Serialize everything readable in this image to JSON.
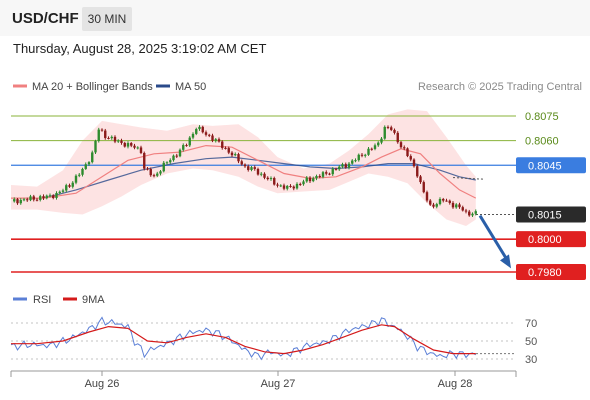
{
  "header": {
    "pair": "USD/CHF",
    "timeframe": "30 MIN",
    "datetime": "Thursday, August 28, 2025 3:19:02 AM CET"
  },
  "legend": {
    "ma20": "MA 20 + Bollinger Bands",
    "ma50": "MA 50",
    "credit": "Research © 2025 Trading Central",
    "rsi": "RSI",
    "rsi_ma": "9MA"
  },
  "colors": {
    "ma20": "#f08080",
    "ma50": "#2a4a8a",
    "band": "#fcd9d9",
    "up": "#2e8b2e",
    "down": "#8b1a1a",
    "resistance": "#8ab33a",
    "pivot": "#3a7de0",
    "support": "#e02020",
    "current": "#2a2a2a",
    "arrow": "#2a5fa8",
    "rsi": "#5b7fd6",
    "rsi_ma": "#d41a1a"
  },
  "chart_data": [
    {
      "type": "candlestick",
      "y_min": 0.7975,
      "y_max": 0.8083,
      "x_labels": [
        "Aug 26",
        "Aug 27",
        "Aug 28"
      ],
      "levels": [
        {
          "value": 0.8075,
          "label": "0.8075",
          "kind": "resistance"
        },
        {
          "value": 0.806,
          "label": "0.8060",
          "kind": "resistance"
        },
        {
          "value": 0.8045,
          "label": "0.8045",
          "kind": "pivot"
        },
        {
          "value": 0.8015,
          "label": "0.8015",
          "kind": "current"
        },
        {
          "value": 0.8,
          "label": "0.8000",
          "kind": "support"
        },
        {
          "value": 0.798,
          "label": "0.7980",
          "kind": "support"
        }
      ],
      "close_path": [
        [
          0,
          0.8023
        ],
        [
          6,
          0.80245
        ],
        [
          12,
          0.8026
        ],
        [
          15,
          0.80285
        ],
        [
          18,
          0.8033
        ],
        [
          22,
          0.8042
        ],
        [
          25,
          0.8052
        ],
        [
          27,
          0.8067
        ],
        [
          29,
          0.8063
        ],
        [
          32,
          0.806
        ],
        [
          35,
          0.8058
        ],
        [
          38,
          0.8056
        ],
        [
          40,
          0.8054
        ],
        [
          41,
          0.8043
        ],
        [
          44,
          0.8038
        ],
        [
          47,
          0.8045
        ],
        [
          51,
          0.8052
        ],
        [
          54,
          0.8058
        ],
        [
          57,
          0.8068
        ],
        [
          60,
          0.8064
        ],
        [
          63,
          0.806
        ],
        [
          66,
          0.8055
        ],
        [
          69,
          0.805
        ],
        [
          72,
          0.8044
        ],
        [
          75,
          0.8042
        ],
        [
          78,
          0.8038
        ],
        [
          82,
          0.8033
        ],
        [
          85,
          0.8031
        ],
        [
          88,
          0.8033
        ],
        [
          91,
          0.8036
        ],
        [
          94,
          0.8038
        ],
        [
          97,
          0.804
        ],
        [
          100,
          0.8043
        ],
        [
          104,
          0.8046
        ],
        [
          107,
          0.805
        ],
        [
          110,
          0.8054
        ],
        [
          113,
          0.8058
        ],
        [
          115,
          0.8068
        ],
        [
          117,
          0.8067
        ],
        [
          119,
          0.806
        ],
        [
          121,
          0.8054
        ],
        [
          123,
          0.8048
        ],
        [
          125,
          0.804
        ],
        [
          127,
          0.8028
        ],
        [
          129,
          0.802
        ],
        [
          131,
          0.8022
        ],
        [
          133,
          0.8024
        ],
        [
          135,
          0.8022
        ],
        [
          137,
          0.802
        ],
        [
          139,
          0.8018
        ],
        [
          140,
          0.8016
        ],
        [
          143,
          0.80155
        ]
      ],
      "ma20": [
        [
          0,
          0.8025
        ],
        [
          10,
          0.8025
        ],
        [
          20,
          0.8028
        ],
        [
          28,
          0.8038
        ],
        [
          36,
          0.8048
        ],
        [
          44,
          0.8052
        ],
        [
          52,
          0.8053
        ],
        [
          60,
          0.8057
        ],
        [
          68,
          0.8056
        ],
        [
          76,
          0.8048
        ],
        [
          84,
          0.804
        ],
        [
          92,
          0.8037
        ],
        [
          100,
          0.8038
        ],
        [
          108,
          0.8044
        ],
        [
          114,
          0.805
        ],
        [
          120,
          0.8055
        ],
        [
          126,
          0.8052
        ],
        [
          132,
          0.804
        ],
        [
          138,
          0.803
        ],
        [
          143,
          0.8025
        ]
      ],
      "ma50": [
        [
          10,
          0.8025
        ],
        [
          20,
          0.803
        ],
        [
          30,
          0.8036
        ],
        [
          40,
          0.8042
        ],
        [
          50,
          0.8046
        ],
        [
          60,
          0.8049
        ],
        [
          68,
          0.805
        ],
        [
          76,
          0.8048
        ],
        [
          84,
          0.8046
        ],
        [
          92,
          0.8044
        ],
        [
          100,
          0.8043
        ],
        [
          108,
          0.8044
        ],
        [
          116,
          0.8046
        ],
        [
          124,
          0.8046
        ],
        [
          132,
          0.8042
        ],
        [
          138,
          0.8038
        ],
        [
          143,
          0.8036
        ]
      ],
      "bb_upper": [
        [
          0,
          0.8033
        ],
        [
          8,
          0.8032
        ],
        [
          16,
          0.8042
        ],
        [
          22,
          0.806
        ],
        [
          28,
          0.8072
        ],
        [
          34,
          0.807
        ],
        [
          40,
          0.8068
        ],
        [
          48,
          0.8066
        ],
        [
          56,
          0.807
        ],
        [
          62,
          0.8069
        ],
        [
          70,
          0.807
        ],
        [
          76,
          0.8062
        ],
        [
          82,
          0.805
        ],
        [
          90,
          0.8043
        ],
        [
          98,
          0.8046
        ],
        [
          104,
          0.8054
        ],
        [
          110,
          0.8064
        ],
        [
          116,
          0.8076
        ],
        [
          122,
          0.8079
        ],
        [
          128,
          0.8078
        ],
        [
          134,
          0.8062
        ],
        [
          140,
          0.8045
        ],
        [
          143,
          0.8038
        ]
      ],
      "bb_lower": [
        [
          0,
          0.8018
        ],
        [
          8,
          0.8018
        ],
        [
          16,
          0.8016
        ],
        [
          22,
          0.8015
        ],
        [
          28,
          0.802
        ],
        [
          34,
          0.8026
        ],
        [
          40,
          0.8033
        ],
        [
          48,
          0.804
        ],
        [
          56,
          0.8043
        ],
        [
          62,
          0.8042
        ],
        [
          70,
          0.8038
        ],
        [
          76,
          0.8032
        ],
        [
          82,
          0.8028
        ],
        [
          90,
          0.8029
        ],
        [
          98,
          0.803
        ],
        [
          104,
          0.8035
        ],
        [
          110,
          0.804
        ],
        [
          116,
          0.8038
        ],
        [
          122,
          0.8034
        ],
        [
          128,
          0.8022
        ],
        [
          134,
          0.8012
        ],
        [
          140,
          0.8008
        ],
        [
          143,
          0.8012
        ]
      ],
      "forecast": [
        [
          143,
          0.80155
        ],
        [
          165,
          0.7981
        ]
      ]
    },
    {
      "type": "line",
      "y_min": 20,
      "y_max": 80,
      "ticks": [
        30,
        50,
        70
      ],
      "rsi": [
        [
          0,
          44
        ],
        [
          6,
          46
        ],
        [
          12,
          45
        ],
        [
          18,
          52
        ],
        [
          24,
          63
        ],
        [
          28,
          72
        ],
        [
          32,
          70
        ],
        [
          36,
          66
        ],
        [
          38,
          50
        ],
        [
          41,
          36
        ],
        [
          44,
          42
        ],
        [
          48,
          47
        ],
        [
          52,
          54
        ],
        [
          56,
          60
        ],
        [
          60,
          62
        ],
        [
          64,
          58
        ],
        [
          68,
          50
        ],
        [
          72,
          40
        ],
        [
          76,
          33
        ],
        [
          80,
          38
        ],
        [
          84,
          34
        ],
        [
          88,
          40
        ],
        [
          92,
          46
        ],
        [
          96,
          48
        ],
        [
          100,
          54
        ],
        [
          104,
          62
        ],
        [
          108,
          66
        ],
        [
          112,
          70
        ],
        [
          114,
          74
        ],
        [
          116,
          69
        ],
        [
          119,
          64
        ],
        [
          122,
          55
        ],
        [
          125,
          44
        ],
        [
          128,
          38
        ],
        [
          132,
          33
        ],
        [
          136,
          36
        ],
        [
          140,
          35
        ],
        [
          143,
          36
        ]
      ],
      "rsi_ma": [
        [
          0,
          47
        ],
        [
          8,
          47
        ],
        [
          16,
          50
        ],
        [
          24,
          60
        ],
        [
          30,
          66
        ],
        [
          36,
          64
        ],
        [
          42,
          50
        ],
        [
          48,
          48
        ],
        [
          54,
          54
        ],
        [
          60,
          58
        ],
        [
          66,
          54
        ],
        [
          72,
          44
        ],
        [
          78,
          38
        ],
        [
          84,
          36
        ],
        [
          90,
          40
        ],
        [
          96,
          46
        ],
        [
          102,
          54
        ],
        [
          108,
          62
        ],
        [
          114,
          68
        ],
        [
          118,
          66
        ],
        [
          124,
          52
        ],
        [
          130,
          40
        ],
        [
          136,
          36
        ],
        [
          143,
          36
        ]
      ]
    }
  ]
}
